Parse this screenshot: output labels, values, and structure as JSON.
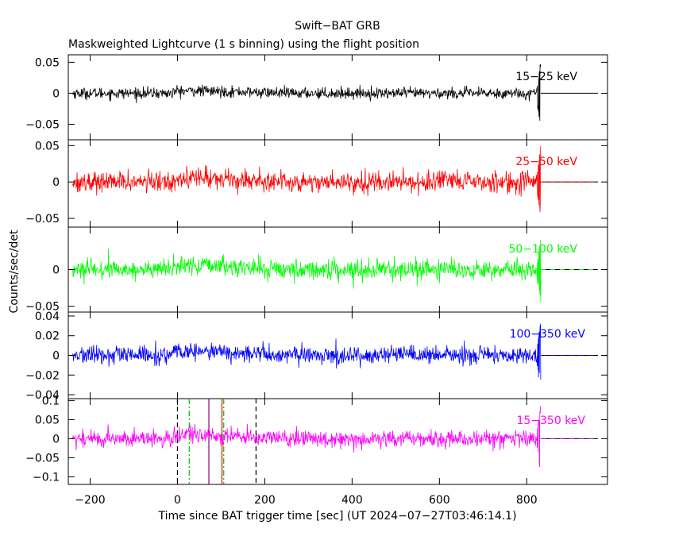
{
  "chart_data": {
    "type": "line",
    "title": "Swift−BAT GRB",
    "subtitle": "Maskweighted Lightcurve (1 s binning) using the flight position",
    "xlabel": "Time since BAT trigger time [sec] (UT 2024−07−27T03:46:14.1)",
    "ylabel": "Counts/sec/det",
    "xlim": [
      -250,
      985
    ],
    "x_ticks": [
      -200,
      0,
      200,
      400,
      600,
      800
    ],
    "x_tick_labels": [
      "−200",
      "0",
      "200",
      "400",
      "600",
      "800"
    ],
    "data_range": [
      -240,
      832
    ],
    "flat_range": [
      832,
      985
    ],
    "grid": false,
    "panels": [
      {
        "band": "15−25 keV",
        "color": "#000000",
        "ylim": [
          -0.075,
          0.062
        ],
        "y_ticks": [
          -0.05,
          0,
          0.05
        ],
        "y_tick_labels": [
          "−0.05",
          "0",
          "0.05"
        ],
        "noise_sigma": 0.0045,
        "end_burst": {
          "max": 0.055,
          "min": -0.07
        },
        "flat_value": 0
      },
      {
        "band": "25−50 keV",
        "color": "#ff0000",
        "ylim": [
          -0.062,
          0.058
        ],
        "y_ticks": [
          -0.05,
          0,
          0.05
        ],
        "y_tick_labels": [
          "−0.05",
          "0",
          "0.05"
        ],
        "noise_sigma": 0.007,
        "end_burst": {
          "max": 0.05,
          "min": -0.058
        },
        "flat_value": 0
      },
      {
        "band": "50−100 keV",
        "color": "#00ff00",
        "ylim": [
          -0.058,
          0.058
        ],
        "y_ticks": [
          -0.05,
          0
        ],
        "y_tick_labels": [
          "−0.05",
          "0"
        ],
        "noise_sigma": 0.0065,
        "end_burst": {
          "max": 0.045,
          "min": -0.055
        },
        "flat_value": 0
      },
      {
        "band": "100−350 keV",
        "color": "#0000ff",
        "ylim": [
          -0.044,
          0.044
        ],
        "y_ticks": [
          -0.04,
          -0.02,
          0,
          0.02,
          0.04
        ],
        "y_tick_labels": [
          "−0.04",
          "−0.02",
          "0",
          "0.02",
          "0.04"
        ],
        "noise_sigma": 0.0045,
        "end_burst": {
          "max": 0.035,
          "min": -0.04
        },
        "flat_value": 0
      },
      {
        "band": "15−350 keV",
        "color": "#ff00ff",
        "ylim": [
          -0.12,
          0.105
        ],
        "y_ticks": [
          -0.1,
          -0.05,
          0,
          0.05,
          0.1
        ],
        "y_tick_labels": [
          "−0.1",
          "−0.05",
          "0",
          "0.05",
          "0.1"
        ],
        "noise_sigma": 0.011,
        "end_burst": {
          "max": 0.09,
          "min": -0.11
        },
        "flat_value": 0,
        "markers": [
          {
            "x": 0,
            "color": "#000000",
            "style": "dashed"
          },
          {
            "x": 27,
            "color": "#00c000",
            "style": "dashdot"
          },
          {
            "x": 72,
            "color": "#800080",
            "style": "solid"
          },
          {
            "x": 102,
            "color": "#ff0000",
            "style": "solid"
          },
          {
            "x": 106,
            "color": "#00c000",
            "style": "dashdot"
          },
          {
            "x": 180,
            "color": "#000000",
            "style": "dashed"
          }
        ]
      }
    ]
  }
}
